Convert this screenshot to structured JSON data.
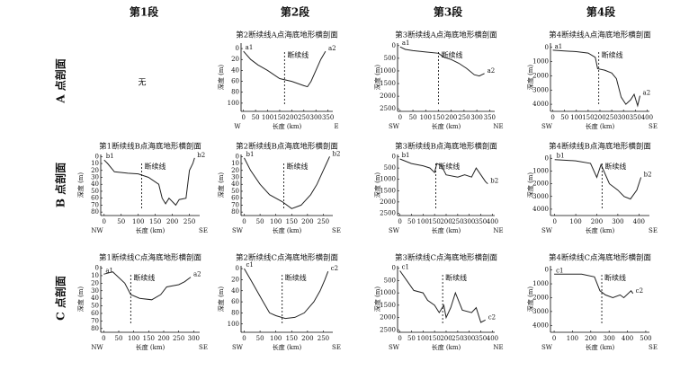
{
  "column_headers": [
    "第1段",
    "第2段",
    "第3段",
    "第4段"
  ],
  "row_labels": [
    "A 点剖面",
    "B 点剖面",
    "C 点剖面"
  ],
  "empty_cell": "无",
  "chart_data": [
    {
      "type": "line",
      "title": "第2断续线A点海底地形横剖面",
      "x_label": "长度 (km)",
      "y_label": "深度 (m)",
      "x_start_label": "W",
      "x_end_label": "E",
      "start_label": "a1",
      "end_label": "a2",
      "x": [
        0,
        10,
        30,
        60,
        100,
        150,
        200,
        250,
        265,
        280,
        300,
        320,
        340
      ],
      "values": [
        5,
        10,
        20,
        30,
        40,
        55,
        60,
        68,
        70,
        60,
        40,
        20,
        5
      ],
      "xlim": [
        -10,
        370
      ],
      "xticks": [
        0,
        50,
        100,
        150,
        200,
        250,
        300,
        350
      ],
      "ylim": [
        -10,
        115
      ],
      "yticks": [
        0,
        20,
        40,
        60,
        80,
        100
      ],
      "y_inverted": true,
      "color": "#222222",
      "annotation": {
        "text": "断续线",
        "x": 170
      }
    },
    {
      "type": "line",
      "title": "第3断续线A点海底地形横剖面",
      "x_label": "长度 (km)",
      "y_label": "深度 (m)",
      "x_start_label": "SW",
      "x_end_label": "NE",
      "start_label": "a1",
      "end_label": "a2",
      "x": [
        0,
        20,
        50,
        100,
        150,
        170,
        200,
        230,
        260,
        290,
        310,
        330
      ],
      "values": [
        50,
        150,
        200,
        250,
        300,
        450,
        550,
        700,
        900,
        1150,
        1200,
        1100
      ],
      "xlim": [
        -10,
        370
      ],
      "xticks": [
        0,
        50,
        100,
        150,
        200,
        250,
        300,
        350
      ],
      "ylim": [
        -100,
        2600
      ],
      "yticks": [
        0,
        500,
        1000,
        1500,
        2000,
        2500
      ],
      "y_inverted": true,
      "color": "#222222",
      "annotation": {
        "text": "断续线",
        "x": 150
      }
    },
    {
      "type": "line",
      "title": "第4断续线A点海底地形横剖面",
      "x_label": "长度 (km)",
      "y_label": "深度 (m)",
      "x_start_label": "SW",
      "x_end_label": "SE",
      "start_label": "a1",
      "end_label": "a2",
      "x": [
        0,
        50,
        100,
        150,
        180,
        190,
        220,
        250,
        270,
        290,
        310,
        330,
        345,
        360,
        370
      ],
      "values": [
        200,
        250,
        300,
        400,
        700,
        1500,
        1600,
        1800,
        2200,
        3500,
        4000,
        3700,
        3300,
        4100,
        3400
      ],
      "xlim": [
        -10,
        410
      ],
      "xticks": [
        0,
        50,
        100,
        150,
        200,
        250,
        300,
        350,
        400
      ],
      "ylim": [
        -300,
        4500
      ],
      "yticks": [
        0,
        1000,
        2000,
        3000,
        4000
      ],
      "y_inverted": true,
      "color": "#222222",
      "annotation": {
        "text": "断续线",
        "x": 195
      }
    },
    {
      "type": "line",
      "title": "第1断续线B点海底地形横剖面",
      "x_label": "长度 (km)",
      "y_label": "深度 (m)",
      "x_start_label": "NW",
      "x_end_label": "SE",
      "start_label": "b1",
      "end_label": "b2",
      "x": [
        0,
        10,
        30,
        70,
        100,
        130,
        160,
        170,
        180,
        190,
        210,
        220,
        240,
        250,
        260,
        265
      ],
      "values": [
        5,
        10,
        22,
        24,
        25,
        30,
        40,
        60,
        68,
        60,
        70,
        62,
        60,
        20,
        10,
        2
      ],
      "xlim": [
        -10,
        280
      ],
      "xticks": [
        0,
        50,
        100,
        150,
        200,
        250
      ],
      "ylim": [
        -3,
        85
      ],
      "yticks": [
        0,
        10,
        20,
        30,
        40,
        50,
        60,
        70,
        80
      ],
      "y_inverted": true,
      "color": "#222222",
      "annotation": {
        "text": "断续线",
        "x": 110
      }
    },
    {
      "type": "line",
      "title": "第2断续线B点海底地形横剖面",
      "x_label": "长度 (km)",
      "y_label": "深度 (m)",
      "x_start_label": "SW",
      "x_end_label": "SE",
      "start_label": "b1",
      "end_label": "b2",
      "x": [
        0,
        20,
        50,
        80,
        120,
        150,
        180,
        210,
        230,
        250,
        260,
        270
      ],
      "values": [
        2,
        20,
        40,
        55,
        65,
        75,
        70,
        55,
        40,
        20,
        10,
        0
      ],
      "xlim": [
        -10,
        280
      ],
      "xticks": [
        0,
        50,
        100,
        150,
        200,
        250
      ],
      "ylim": [
        -3,
        85
      ],
      "yticks": [
        0,
        10,
        20,
        30,
        40,
        50,
        60,
        70,
        80
      ],
      "y_inverted": true,
      "color": "#222222",
      "annotation": {
        "text": "断续线",
        "x": 125
      }
    },
    {
      "type": "line",
      "title": "第3断续线B点海底地形横剖面",
      "x_label": "长度 (km)",
      "y_label": "深度 (m)",
      "x_start_label": "SW",
      "x_end_label": "NE",
      "start_label": "b1",
      "end_label": "b2",
      "x": [
        0,
        50,
        100,
        130,
        150,
        160,
        180,
        200,
        250,
        280,
        310,
        330,
        350,
        370,
        380
      ],
      "values": [
        100,
        300,
        400,
        500,
        700,
        300,
        400,
        800,
        900,
        800,
        900,
        500,
        800,
        1100,
        1200
      ],
      "xlim": [
        -10,
        410
      ],
      "xticks": [
        0,
        50,
        100,
        150,
        200,
        250,
        300,
        350,
        400
      ],
      "ylim": [
        -100,
        2600
      ],
      "yticks": [
        0,
        500,
        1000,
        1500,
        2000,
        2500
      ],
      "y_inverted": true,
      "color": "#222222",
      "annotation": {
        "text": "断续线",
        "x": 155
      }
    },
    {
      "type": "line",
      "title": "第4断续线B点海底地形横剖面",
      "x_label": "长度 (km)",
      "y_label": "深度 (m)",
      "x_start_label": "SW",
      "x_end_label": "SE",
      "start_label": "b1",
      "end_label": "b2",
      "x": [
        0,
        100,
        170,
        200,
        220,
        260,
        300,
        330,
        360,
        390,
        410
      ],
      "values": [
        100,
        200,
        400,
        1500,
        500,
        2000,
        2500,
        3000,
        3200,
        2500,
        1500
      ],
      "xlim": [
        -20,
        450
      ],
      "xticks": [
        0,
        100,
        200,
        300,
        400
      ],
      "ylim": [
        -300,
        4500
      ],
      "yticks": [
        0,
        1000,
        2000,
        3000,
        4000
      ],
      "y_inverted": true,
      "color": "#222222",
      "annotation": {
        "text": "断续线",
        "x": 225
      }
    },
    {
      "type": "line",
      "title": "第1断续线C点海底地形横剖面",
      "x_label": "长度 (km)",
      "y_label": "深度 (m)",
      "x_start_label": "NW",
      "x_end_label": "SE",
      "start_label": "a1",
      "end_label": "a2",
      "x": [
        0,
        30,
        70,
        90,
        120,
        160,
        190,
        210,
        250,
        270,
        290
      ],
      "values": [
        8,
        5,
        20,
        35,
        40,
        42,
        35,
        25,
        22,
        18,
        12
      ],
      "xlim": [
        -10,
        320
      ],
      "xticks": [
        0,
        50,
        100,
        150,
        200,
        250,
        300
      ],
      "ylim": [
        -3,
        85
      ],
      "yticks": [
        0,
        10,
        20,
        30,
        40,
        50,
        60,
        70,
        80
      ],
      "y_inverted": true,
      "color": "#222222",
      "annotation": {
        "text": "断续线",
        "x": 90
      }
    },
    {
      "type": "line",
      "title": "第2断续线C点海底地形横剖面",
      "x_label": "长度 (km)",
      "y_label": "深度 (m)",
      "x_start_label": "SW",
      "x_end_label": "SE",
      "start_label": "c1",
      "end_label": "c2",
      "x": [
        0,
        20,
        40,
        60,
        80,
        100,
        130,
        160,
        190,
        220,
        240,
        255,
        265
      ],
      "values": [
        0,
        20,
        40,
        60,
        80,
        85,
        90,
        88,
        80,
        60,
        40,
        20,
        5
      ],
      "xlim": [
        -10,
        280
      ],
      "xticks": [
        0,
        50,
        100,
        150,
        200,
        250
      ],
      "ylim": [
        -5,
        115
      ],
      "yticks": [
        0,
        20,
        40,
        60,
        80,
        100
      ],
      "y_inverted": true,
      "color": "#222222",
      "annotation": {
        "text": "断续线",
        "x": 120
      }
    },
    {
      "type": "line",
      "title": "第3断续线C点海底地形横剖面",
      "x_label": "长度 (km)",
      "y_label": "深度 (m)",
      "x_start_label": "SW",
      "x_end_label": "NE",
      "start_label": "c1",
      "end_label": "c2",
      "x": [
        0,
        30,
        60,
        100,
        120,
        150,
        170,
        190,
        200,
        220,
        240,
        270,
        310,
        330,
        350,
        370
      ],
      "values": [
        100,
        500,
        900,
        1000,
        1300,
        1500,
        1800,
        1500,
        2000,
        1600,
        1000,
        1700,
        1800,
        1600,
        2200,
        2100
      ],
      "xlim": [
        -10,
        410
      ],
      "xticks": [
        0,
        50,
        100,
        150,
        200,
        250,
        300,
        350,
        400
      ],
      "ylim": [
        -100,
        2600
      ],
      "yticks": [
        0,
        500,
        1000,
        1500,
        2000,
        2500
      ],
      "y_inverted": true,
      "color": "#222222",
      "annotation": {
        "text": "断续线",
        "x": 185
      }
    },
    {
      "type": "line",
      "title": "第4断续线C点海底地形横剖面",
      "x_label": "长度 (km)",
      "y_label": "深度 (m)",
      "x_start_label": "SW",
      "x_end_label": "SE",
      "start_label": "c1",
      "end_label": "c2",
      "x": [
        0,
        150,
        220,
        250,
        280,
        320,
        360,
        380,
        420,
        430
      ],
      "values": [
        300,
        300,
        500,
        1500,
        1800,
        2000,
        1800,
        2000,
        1500,
        1700
      ],
      "xlim": [
        -20,
        520
      ],
      "xticks": [
        0,
        100,
        200,
        300,
        400,
        500
      ],
      "ylim": [
        -300,
        4500
      ],
      "yticks": [
        0,
        1000,
        2000,
        3000,
        4000
      ],
      "y_inverted": true,
      "color": "#222222",
      "annotation": {
        "text": "断续线",
        "x": 260
      }
    }
  ]
}
